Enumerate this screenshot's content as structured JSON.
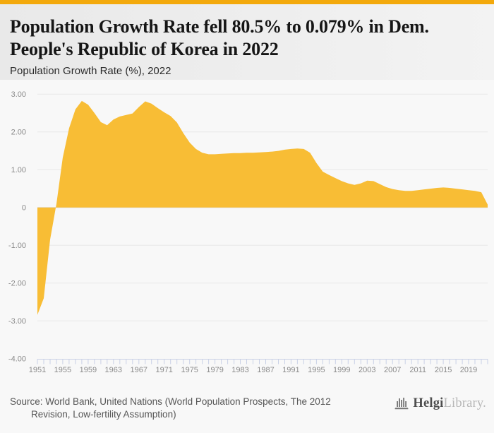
{
  "page": {
    "background": "#f8f8f8",
    "accent_color": "#F3A90C"
  },
  "header": {
    "title": "Population Growth Rate fell 80.5% to 0.079% in Dem. People's Republic of Korea in 2022",
    "subtitle": "Population Growth Rate (%), 2022"
  },
  "chart_data": {
    "type": "area",
    "title": "Population Growth Rate (%), 2022",
    "series_name": "Population Growth Rate (%)",
    "xlabel": "",
    "ylabel": "",
    "legend": "none",
    "grid": true,
    "ylim": [
      -4,
      3
    ],
    "y_ticks": [
      "3.00",
      "2.00",
      "1.00",
      "0",
      "-1.00",
      "-2.00",
      "-3.00",
      "-4.00"
    ],
    "x_tick_labels": [
      1951,
      1955,
      1959,
      1963,
      1967,
      1971,
      1975,
      1979,
      1983,
      1987,
      1991,
      1995,
      1999,
      2003,
      2007,
      2011,
      2015,
      2019
    ],
    "x": [
      1951,
      1952,
      1953,
      1954,
      1955,
      1956,
      1957,
      1958,
      1959,
      1960,
      1961,
      1962,
      1963,
      1964,
      1965,
      1966,
      1967,
      1968,
      1969,
      1970,
      1971,
      1972,
      1973,
      1974,
      1975,
      1976,
      1977,
      1978,
      1979,
      1980,
      1981,
      1982,
      1983,
      1984,
      1985,
      1986,
      1987,
      1988,
      1989,
      1990,
      1991,
      1992,
      1993,
      1994,
      1995,
      1996,
      1997,
      1998,
      1999,
      2000,
      2001,
      2002,
      2003,
      2004,
      2005,
      2006,
      2007,
      2008,
      2009,
      2010,
      2011,
      2012,
      2013,
      2014,
      2015,
      2016,
      2017,
      2018,
      2019,
      2020,
      2021,
      2022
    ],
    "values": [
      -2.84,
      -2.4,
      -0.85,
      0.1,
      1.32,
      2.1,
      2.6,
      2.82,
      2.72,
      2.5,
      2.26,
      2.18,
      2.33,
      2.41,
      2.45,
      2.49,
      2.66,
      2.81,
      2.75,
      2.63,
      2.52,
      2.42,
      2.25,
      1.97,
      1.72,
      1.55,
      1.45,
      1.41,
      1.41,
      1.42,
      1.43,
      1.44,
      1.44,
      1.45,
      1.45,
      1.46,
      1.47,
      1.48,
      1.5,
      1.53,
      1.55,
      1.56,
      1.55,
      1.45,
      1.18,
      0.95,
      0.86,
      0.78,
      0.7,
      0.64,
      0.6,
      0.64,
      0.71,
      0.7,
      0.62,
      0.54,
      0.49,
      0.46,
      0.44,
      0.44,
      0.46,
      0.48,
      0.5,
      0.52,
      0.53,
      0.52,
      0.5,
      0.48,
      0.46,
      0.44,
      0.405,
      0.079
    ],
    "fill_color": "#F8BD35",
    "grid_color": "#e8e8e8",
    "zero_line_color": "#dadada",
    "axis_color": "#c9d1e6",
    "label_color": "#8a8a8a"
  },
  "footer": {
    "source_lines": [
      "Source: World Bank, United Nations (World Population Prospects, The 2012",
      "Revision, Low-fertility Assumption)"
    ],
    "logo_primary": "Helgi",
    "logo_secondary": "Library."
  }
}
